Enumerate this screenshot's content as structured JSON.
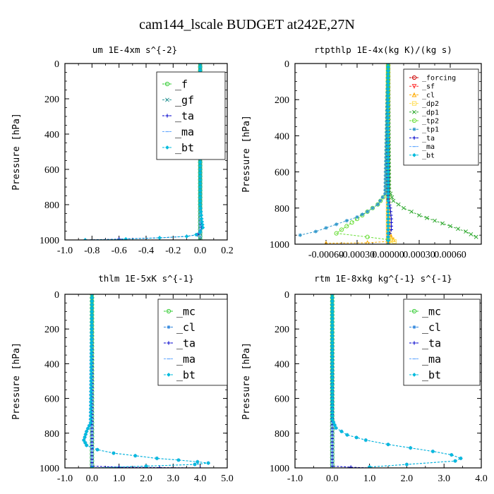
{
  "figure": {
    "title": "cam144_lscale  BUDGET at242E,27N"
  },
  "chart_data": [
    {
      "type": "line",
      "title": "um  1E-4xm s^{-2}",
      "ylabel": "Pressure [hPa]",
      "xlabel": "",
      "xlim": [
        -1.0,
        0.2
      ],
      "ylim": [
        0,
        1000
      ],
      "y_inverted": true,
      "xticks": [
        -1.0,
        -0.8,
        -0.6,
        -0.4,
        -0.2,
        0.0,
        0.2
      ],
      "xtick_labels": [
        "-1.0",
        "-0.8",
        "-0.6",
        "-0.4",
        "-0.2",
        "0.0",
        "0.2"
      ],
      "yticks": [
        0,
        200,
        400,
        600,
        800,
        1000
      ],
      "ytick_labels": [
        "0",
        "200",
        "400",
        "600",
        "800",
        "1000"
      ],
      "legend_position": "top-right",
      "series": [
        {
          "name": "_f",
          "color": "#33cc33",
          "marker": "circle",
          "x": [
            0.0,
            0.0
          ],
          "y": [
            0,
            1000
          ]
        },
        {
          "name": "_gf",
          "color": "#339999",
          "marker": "x",
          "x": [
            0.0,
            0.0
          ],
          "y": [
            0,
            1000
          ]
        },
        {
          "name": "_ta",
          "color": "#0000cc",
          "marker": "plus",
          "x": [
            0.0,
            0.0,
            0.01,
            0.01,
            0.0,
            -0.02,
            -0.1,
            -0.3,
            -0.6,
            -0.85
          ],
          "y": [
            0,
            800,
            880,
            930,
            955,
            970,
            980,
            988,
            995,
            1000
          ]
        },
        {
          "name": "_ma",
          "color": "#66aaff",
          "marker": "dash",
          "x": [
            0.0,
            0.0
          ],
          "y": [
            0,
            1000
          ]
        },
        {
          "name": "_bt",
          "color": "#00bbdd",
          "marker": "diamond",
          "x": [
            0.0,
            0.0,
            0.01,
            0.02,
            0.0,
            -0.03,
            -0.1,
            -0.3,
            -0.55,
            -0.85
          ],
          "y": [
            0,
            800,
            880,
            930,
            955,
            970,
            980,
            988,
            995,
            1000
          ]
        }
      ]
    },
    {
      "type": "line",
      "title": "rtpthlp  1E-4x(kg K)/(kg s)",
      "ylabel": "Pressure [hPa]",
      "xlabel": "",
      "xlim": [
        -0.0009,
        0.0009
      ],
      "ylim": [
        0,
        1000
      ],
      "y_inverted": true,
      "xticks": [
        -0.0006,
        -0.0003,
        0.0,
        0.0003,
        0.0006
      ],
      "xtick_labels": [
        "-0.00060",
        "-0.00030",
        "0.00000",
        "0.00030",
        "0.00060"
      ],
      "yticks": [
        0,
        200,
        400,
        600,
        800,
        1000
      ],
      "ytick_labels": [
        "0",
        "200",
        "400",
        "600",
        "800",
        "1000"
      ],
      "legend_position": "top-right",
      "series": [
        {
          "name": "_forcing",
          "color": "#cc0000",
          "marker": "circle",
          "x": [
            0.0,
            0.0
          ],
          "y": [
            0,
            1000
          ]
        },
        {
          "name": "_sf",
          "color": "#ff3333",
          "marker": "triangle-down",
          "x": [
            0.0,
            0.0
          ],
          "y": [
            0,
            1000
          ]
        },
        {
          "name": "_cl",
          "color": "#ffaa00",
          "marker": "triangle-up",
          "x": [
            0.0,
            0.0,
            3e-05,
            5e-05,
            0.0,
            -0.0002,
            -0.0006
          ],
          "y": [
            0,
            920,
            960,
            975,
            985,
            992,
            995
          ]
        },
        {
          "name": "_dp2",
          "color": "#ffdd55",
          "marker": "square",
          "x": [
            0.0,
            0.0,
            4e-05,
            6e-05,
            0.0
          ],
          "y": [
            0,
            960,
            975,
            985,
            995
          ]
        },
        {
          "name": "_dp1",
          "color": "#33aa33",
          "marker": "x",
          "x": [
            0.0,
            1e-05,
            5e-05,
            0.00015,
            0.0003,
            0.00045,
            0.0006,
            0.00075,
            0.00085
          ],
          "y": [
            0,
            700,
            760,
            800,
            840,
            870,
            900,
            930,
            960
          ]
        },
        {
          "name": "_tp2",
          "color": "#66dd33",
          "marker": "circle",
          "x": [
            0.0,
            -2e-05,
            -0.0001,
            -0.0002,
            -0.0003,
            -0.0004,
            -0.0005,
            -0.0002,
            0.0
          ],
          "y": [
            0,
            720,
            780,
            820,
            860,
            900,
            940,
            960,
            975
          ]
        },
        {
          "name": "_tp1",
          "color": "#3399cc",
          "marker": "star",
          "x": [
            0.0,
            -3e-05,
            -0.0001,
            -0.0002,
            -0.0003,
            -0.0004,
            -0.0005,
            -0.0006,
            -0.0007,
            -0.00085
          ],
          "y": [
            0,
            720,
            780,
            820,
            850,
            870,
            890,
            910,
            930,
            950
          ]
        },
        {
          "name": "_ta",
          "color": "#0000cc",
          "marker": "plus",
          "x": [
            0.0,
            0.0,
            2e-05,
            3e-05,
            3e-05,
            0.0
          ],
          "y": [
            0,
            750,
            800,
            860,
            920,
            960
          ]
        },
        {
          "name": "_ma",
          "color": "#66aaff",
          "marker": "dash",
          "x": [
            0.0,
            0.0
          ],
          "y": [
            0,
            1000
          ]
        },
        {
          "name": "_bt",
          "color": "#00bbdd",
          "marker": "diamond",
          "x": [
            0.0,
            0.0
          ],
          "y": [
            0,
            1000
          ]
        }
      ]
    },
    {
      "type": "line",
      "title": "thlm  1E-5xK s^{-1}",
      "ylabel": "Pressure [hPa]",
      "xlabel": "",
      "xlim": [
        -1.0,
        5.0
      ],
      "ylim": [
        0,
        1000
      ],
      "y_inverted": true,
      "xticks": [
        -1.0,
        0.0,
        1.0,
        2.0,
        3.0,
        4.0,
        5.0
      ],
      "xtick_labels": [
        "-1.0",
        "0.0",
        "1.0",
        "2.0",
        "3.0",
        "4.0",
        "5.0"
      ],
      "yticks": [
        0,
        200,
        400,
        600,
        800,
        1000
      ],
      "ytick_labels": [
        "0",
        "200",
        "400",
        "600",
        "800",
        "1000"
      ],
      "legend_position": "top-right",
      "series": [
        {
          "name": "_mc",
          "color": "#33cc33",
          "marker": "circle",
          "x": [
            0.0,
            0.0
          ],
          "y": [
            0,
            1000
          ]
        },
        {
          "name": "_cl",
          "color": "#3388dd",
          "marker": "star",
          "x": [
            0.0,
            -0.05,
            -0.2,
            -0.3,
            -0.2,
            0.2,
            0.8,
            1.6,
            2.4,
            3.2,
            3.9,
            4.3,
            3.8,
            2.0,
            0.0
          ],
          "y": [
            0,
            740,
            790,
            840,
            870,
            895,
            915,
            930,
            945,
            955,
            965,
            972,
            980,
            990,
            1000
          ]
        },
        {
          "name": "_ta",
          "color": "#0000cc",
          "marker": "plus",
          "x": [
            0.0,
            0.0,
            1.0,
            2.5,
            4.0
          ],
          "y": [
            0,
            990,
            996,
            998,
            1000
          ]
        },
        {
          "name": "_ma",
          "color": "#66aaff",
          "marker": "dash",
          "x": [
            0.0,
            0.0
          ],
          "y": [
            0,
            1000
          ]
        },
        {
          "name": "_bt",
          "color": "#00bbdd",
          "marker": "diamond",
          "x": [
            0.0,
            -0.05,
            -0.2,
            -0.3,
            -0.2,
            0.2,
            0.8,
            1.6,
            2.4,
            3.2,
            3.9,
            4.3,
            3.8,
            2.0,
            0.0
          ],
          "y": [
            0,
            740,
            790,
            840,
            870,
            895,
            915,
            930,
            945,
            955,
            965,
            972,
            980,
            990,
            1000
          ]
        }
      ]
    },
    {
      "type": "line",
      "title": "rtm  1E-8xkg kg^{-1} s^{-1}",
      "ylabel": "Pressure [hPa]",
      "xlabel": "",
      "xlim": [
        -1.0,
        4.0
      ],
      "ylim": [
        0,
        1000
      ],
      "y_inverted": true,
      "xticks": [
        -1.0,
        0.0,
        1.0,
        2.0,
        3.0,
        4.0
      ],
      "xtick_labels": [
        "-1.0",
        "0.0",
        "1.0",
        "2.0",
        "3.0",
        "4.0"
      ],
      "yticks": [
        0,
        200,
        400,
        600,
        800,
        1000
      ],
      "ytick_labels": [
        "0",
        "200",
        "400",
        "600",
        "800",
        "1000"
      ],
      "legend_position": "top-right",
      "series": [
        {
          "name": "_mc",
          "color": "#33cc33",
          "marker": "circle",
          "x": [
            0.0,
            0.0
          ],
          "y": [
            0,
            1000
          ]
        },
        {
          "name": "_cl",
          "color": "#3388dd",
          "marker": "star",
          "x": [
            0.0,
            0.0,
            0.1,
            0.4,
            0.9,
            1.5,
            2.1,
            2.7,
            3.2,
            3.45,
            3.3,
            2.0,
            1.0
          ],
          "y": [
            0,
            720,
            770,
            810,
            840,
            865,
            885,
            905,
            925,
            945,
            960,
            980,
            995
          ]
        },
        {
          "name": "_ta",
          "color": "#0000cc",
          "marker": "plus",
          "x": [
            0.0,
            0.0,
            0.5,
            1.0
          ],
          "y": [
            0,
            990,
            996,
            1000
          ]
        },
        {
          "name": "_ma",
          "color": "#66aaff",
          "marker": "dash",
          "x": [
            0.0,
            0.0
          ],
          "y": [
            0,
            1000
          ]
        },
        {
          "name": "_bt",
          "color": "#00bbdd",
          "marker": "diamond",
          "x": [
            0.0,
            0.0,
            0.1,
            0.4,
            0.9,
            1.5,
            2.1,
            2.7,
            3.2,
            3.45,
            3.3,
            2.0,
            1.0
          ],
          "y": [
            0,
            720,
            770,
            810,
            840,
            865,
            885,
            905,
            925,
            945,
            960,
            980,
            995
          ]
        }
      ]
    }
  ]
}
